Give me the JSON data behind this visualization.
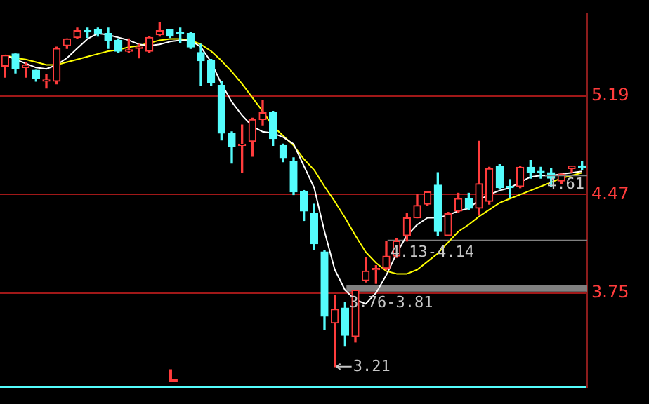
{
  "chart_data": {
    "type": "candlestick",
    "categories": [
      null,
      null,
      null,
      null,
      null,
      null,
      null,
      null,
      null,
      null,
      null,
      null,
      null,
      null,
      null,
      null,
      null,
      null,
      null,
      null,
      null,
      null,
      null,
      null,
      null,
      null,
      null,
      null,
      null,
      null,
      null,
      null,
      null,
      null,
      null,
      null,
      null,
      null,
      null,
      null,
      null,
      null,
      null,
      null,
      null,
      null,
      null,
      null,
      null,
      null,
      null,
      null,
      null,
      null,
      null,
      null,
      null
    ],
    "ohlc": [
      [
        5.41,
        5.49,
        5.33,
        5.49
      ],
      [
        5.5,
        5.5,
        5.36,
        5.39
      ],
      [
        5.4,
        5.44,
        5.33,
        5.42
      ],
      [
        5.38,
        5.38,
        5.3,
        5.32
      ],
      [
        5.3,
        5.35,
        5.25,
        5.31
      ],
      [
        5.3,
        5.55,
        5.28,
        5.54
      ],
      [
        5.56,
        5.61,
        5.54,
        5.61
      ],
      [
        5.62,
        5.69,
        5.61,
        5.67
      ],
      [
        5.67,
        5.69,
        5.62,
        5.66
      ],
      [
        5.68,
        5.69,
        5.63,
        5.65
      ],
      [
        5.65,
        5.69,
        5.54,
        5.6
      ],
      [
        5.6,
        5.61,
        5.51,
        5.52
      ],
      [
        5.52,
        5.61,
        5.51,
        5.53
      ],
      [
        5.54,
        5.57,
        5.47,
        5.55
      ],
      [
        5.52,
        5.63,
        5.51,
        5.62
      ],
      [
        5.64,
        5.73,
        5.63,
        5.67
      ],
      [
        5.68,
        5.68,
        5.62,
        5.63
      ],
      [
        5.66,
        5.69,
        5.58,
        5.65
      ],
      [
        5.65,
        5.66,
        5.54,
        5.55
      ],
      [
        5.51,
        5.57,
        5.27,
        5.45
      ],
      [
        5.45,
        5.46,
        5.27,
        5.29
      ],
      [
        5.27,
        5.3,
        4.87,
        4.92
      ],
      [
        4.92,
        4.93,
        4.7,
        4.82
      ],
      [
        4.83,
        4.98,
        4.63,
        4.84
      ],
      [
        4.86,
        5.03,
        4.75,
        5.02
      ],
      [
        5.02,
        5.16,
        4.98,
        5.07
      ],
      [
        5.07,
        5.08,
        4.83,
        4.88
      ],
      [
        4.83,
        4.84,
        4.71,
        4.74
      ],
      [
        4.71,
        4.74,
        4.47,
        4.49
      ],
      [
        4.49,
        4.5,
        4.28,
        4.35
      ],
      [
        4.33,
        4.4,
        4.07,
        4.11
      ],
      [
        4.05,
        4.06,
        3.48,
        3.58
      ],
      [
        3.53,
        3.73,
        3.21,
        3.63
      ],
      [
        3.64,
        3.68,
        3.36,
        3.44
      ],
      [
        3.43,
        3.77,
        3.39,
        3.77
      ],
      [
        3.84,
        4.01,
        3.83,
        3.91
      ],
      [
        3.92,
        3.95,
        3.82,
        3.93
      ],
      [
        3.93,
        4.13,
        3.92,
        4.02
      ],
      [
        4.02,
        4.15,
        4.01,
        4.13
      ],
      [
        4.17,
        4.33,
        4.13,
        4.3
      ],
      [
        4.3,
        4.47,
        4.3,
        4.39
      ],
      [
        4.4,
        4.49,
        4.39,
        4.49
      ],
      [
        4.54,
        4.63,
        4.17,
        4.2
      ],
      [
        4.17,
        4.34,
        4.17,
        4.33
      ],
      [
        4.35,
        4.48,
        4.34,
        4.44
      ],
      [
        4.44,
        4.48,
        4.36,
        4.37
      ],
      [
        4.37,
        4.86,
        4.32,
        4.55
      ],
      [
        4.42,
        4.67,
        4.4,
        4.66
      ],
      [
        4.68,
        4.69,
        4.51,
        4.52
      ],
      [
        4.53,
        4.58,
        4.45,
        4.52
      ],
      [
        4.53,
        4.68,
        4.52,
        4.67
      ],
      [
        4.67,
        4.72,
        4.59,
        4.63
      ],
      [
        4.64,
        4.67,
        4.59,
        4.63
      ],
      [
        4.63,
        4.66,
        4.53,
        4.59
      ],
      [
        4.57,
        4.62,
        4.55,
        4.62
      ],
      [
        4.66,
        4.68,
        4.63,
        4.68
      ],
      [
        4.68,
        4.71,
        4.65,
        4.67
      ]
    ],
    "colors": [
      "#ff3c3c",
      "#54fcfc",
      "#ff3c3c",
      "#54fcfc",
      "#ff3c3c",
      "#ff3c3c",
      "#ff3c3c",
      "#ff3c3c",
      "#54fcfc",
      "#54fcfc",
      "#54fcfc",
      "#54fcfc",
      "#ff3c3c",
      "#ff3c3c",
      "#ff3c3c",
      "#ff3c3c",
      "#54fcfc",
      "#54fcfc",
      "#54fcfc",
      "#54fcfc",
      "#54fcfc",
      "#54fcfc",
      "#54fcfc",
      "#ff3c3c",
      "#ff3c3c",
      "#ff3c3c",
      "#54fcfc",
      "#54fcfc",
      "#54fcfc",
      "#54fcfc",
      "#54fcfc",
      "#54fcfc",
      "#ff3c3c",
      "#54fcfc",
      "#ff3c3c",
      "#ff3c3c",
      "#ff3c3c",
      "#ff3c3c",
      "#ff3c3c",
      "#ff3c3c",
      "#ff3c3c",
      "#ff3c3c",
      "#54fcfc",
      "#ff3c3c",
      "#ff3c3c",
      "#54fcfc",
      "#ff3c3c",
      "#ff3c3c",
      "#54fcfc",
      "#54fcfc",
      "#ff3c3c",
      "#54fcfc",
      "#54fcfc",
      "#54fcfc",
      "#ff3c3c",
      "#ff3c3c",
      "#54fcfc"
    ],
    "series": [
      {
        "type": "line",
        "color": "#ffffff",
        "values": [
          5.49,
          5.46,
          5.43,
          5.4,
          5.39,
          5.42,
          5.47,
          5.54,
          5.61,
          5.65,
          5.64,
          5.62,
          5.6,
          5.57,
          5.56,
          5.57,
          5.59,
          5.6,
          5.6,
          5.55,
          5.44,
          5.28,
          5.15,
          5.05,
          4.97,
          4.93,
          4.92,
          4.89,
          4.84,
          4.68,
          4.52,
          4.2,
          3.92,
          3.77,
          3.7,
          3.67,
          3.75,
          3.88,
          4.04,
          4.17,
          4.25,
          4.3,
          4.3,
          4.32,
          4.35,
          4.37,
          4.43,
          4.47,
          4.5,
          4.52,
          4.56,
          4.6,
          4.61,
          4.61,
          4.62,
          4.63,
          4.64
        ]
      },
      {
        "type": "line",
        "color": "#ffff00",
        "values": [
          5.49,
          5.47,
          5.46,
          5.44,
          5.42,
          5.42,
          5.44,
          5.46,
          5.48,
          5.5,
          5.52,
          5.53,
          5.55,
          5.56,
          5.58,
          5.6,
          5.61,
          5.61,
          5.6,
          5.57,
          5.52,
          5.45,
          5.37,
          5.28,
          5.18,
          5.08,
          4.97,
          4.9,
          4.83,
          4.73,
          4.65,
          4.53,
          4.42,
          4.3,
          4.17,
          4.05,
          3.97,
          3.91,
          3.89,
          3.89,
          3.92,
          3.98,
          4.04,
          4.12,
          4.2,
          4.25,
          4.31,
          4.36,
          4.41,
          4.44,
          4.47,
          4.5,
          4.53,
          4.56,
          4.59,
          4.61,
          4.63
        ]
      }
    ],
    "ylim": [
      3.06,
      5.79
    ],
    "yticks": [
      5.19,
      4.47,
      3.75
    ],
    "grid": "y",
    "tick_labels": "y",
    "marker": "none",
    "bands": [
      {
        "axis": "y",
        "from": 4.13,
        "to": 4.14,
        "label": "4.13-4.14",
        "color": "#808080"
      },
      {
        "axis": "y",
        "from": 3.76,
        "to": 3.81,
        "label": "3.76-3.81",
        "color": "#808080"
      }
    ],
    "annotations": [
      {
        "text": "4.61",
        "y": 4.61
      },
      "3.21",
      "L"
    ]
  }
}
